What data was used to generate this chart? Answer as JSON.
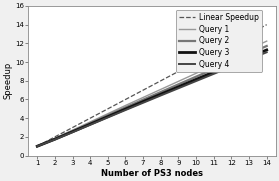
{
  "title": "",
  "xlabel": "Number of PS3 nodes",
  "ylabel": "Speedup",
  "x": [
    1,
    2,
    3,
    4,
    5,
    6,
    7,
    8,
    9,
    10,
    11,
    12,
    13,
    14
  ],
  "linear_speedup": [
    1,
    2,
    3,
    4,
    5,
    6,
    7,
    8,
    9,
    10,
    11,
    12,
    13,
    14
  ],
  "query1": [
    1.0,
    1.85,
    2.72,
    3.6,
    4.48,
    5.36,
    6.22,
    7.08,
    7.94,
    8.8,
    9.66,
    10.52,
    11.38,
    12.24
  ],
  "query2": [
    1.0,
    1.8,
    2.63,
    3.47,
    4.31,
    5.15,
    5.98,
    6.8,
    7.62,
    8.44,
    9.26,
    10.08,
    10.9,
    11.72
  ],
  "query3": [
    1.0,
    1.75,
    2.55,
    3.36,
    4.17,
    4.98,
    5.78,
    6.57,
    7.36,
    8.15,
    8.94,
    9.73,
    10.52,
    11.3
  ],
  "query4": [
    1.0,
    1.72,
    2.5,
    3.29,
    4.08,
    4.87,
    5.65,
    6.43,
    7.2,
    7.97,
    8.74,
    9.51,
    10.28,
    11.05
  ],
  "linear_color": "#555555",
  "query1_color": "#999999",
  "query2_color": "#777777",
  "query3_color": "#111111",
  "query4_color": "#444444",
  "bg_color": "#f0f0f0",
  "plot_bg_color": "#ffffff",
  "ylim": [
    0,
    16
  ],
  "xlim": [
    0.5,
    14.5
  ],
  "yticks": [
    0,
    2,
    4,
    6,
    8,
    10,
    12,
    14,
    16
  ],
  "xticks": [
    1,
    2,
    3,
    4,
    5,
    6,
    7,
    8,
    9,
    10,
    11,
    12,
    13,
    14
  ],
  "legend_labels": [
    "Linear Speedup",
    "Query 1",
    "Query 2",
    "Query 3",
    "Query 4"
  ],
  "xlabel_fontsize": 6.0,
  "ylabel_fontsize": 6.0,
  "tick_fontsize": 5.0,
  "legend_fontsize": 5.5,
  "linewidth_dashed": 0.9,
  "linewidth_q1": 1.0,
  "linewidth_q2": 1.6,
  "linewidth_q3": 2.0,
  "linewidth_q4": 1.4
}
